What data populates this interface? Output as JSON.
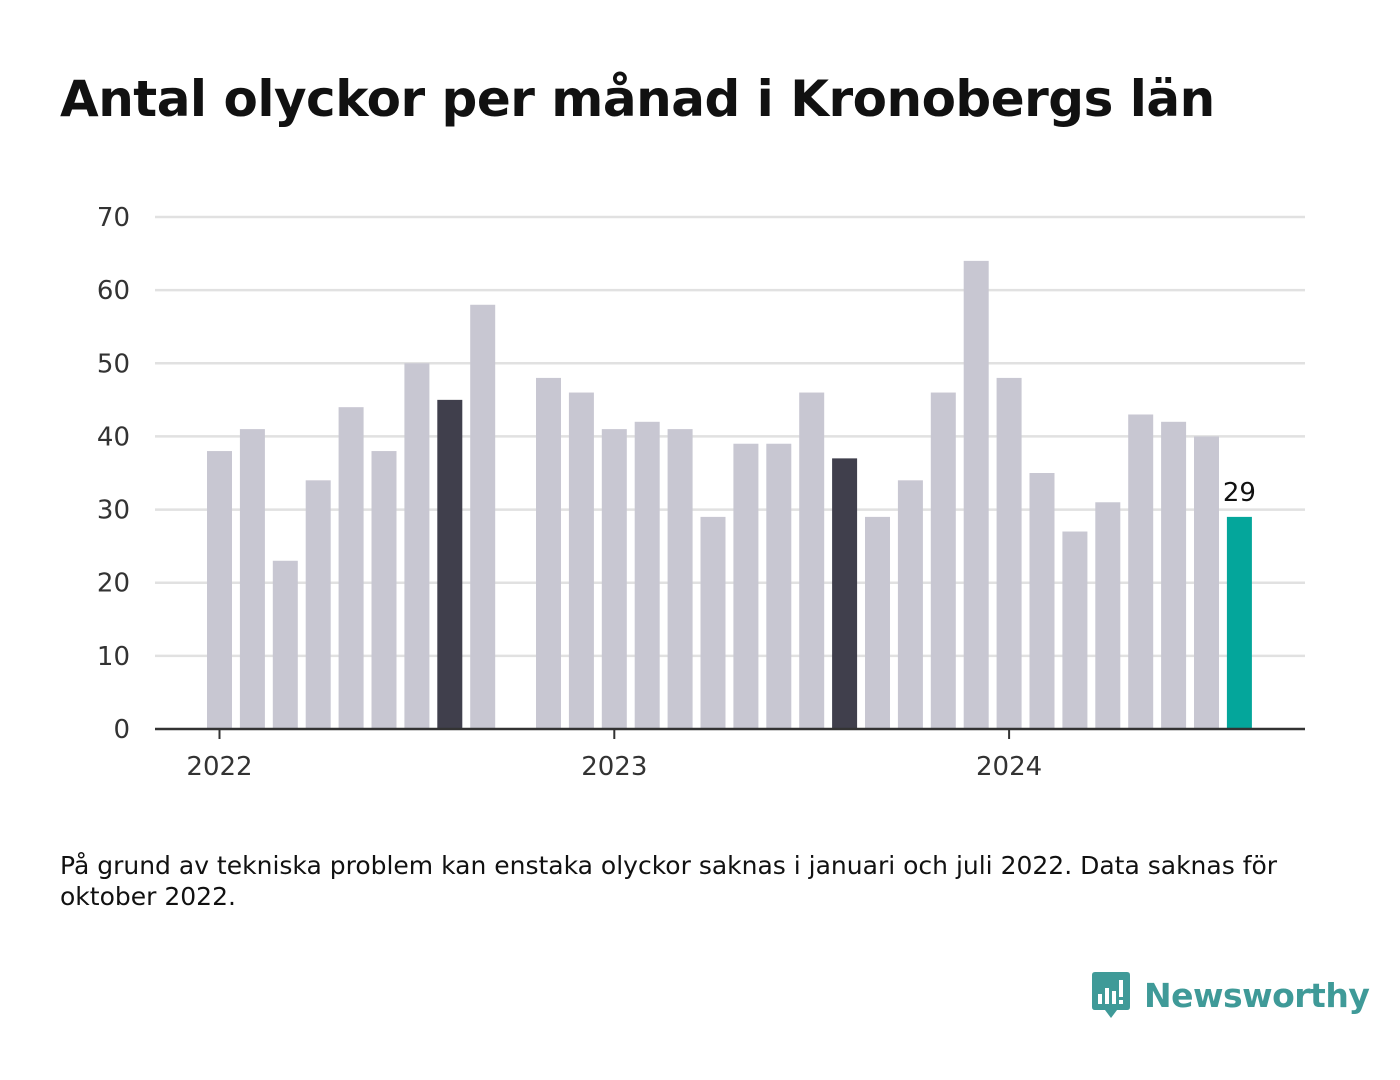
{
  "colors": {
    "default_bar": "#c8c7d2",
    "highlight_bar": "#403f4c",
    "latest_bar": "#04a69b",
    "brand": "#3f9a98",
    "grid": "#e1e1e1",
    "axis": "#333333"
  },
  "brand": {
    "name": "Newsworthy",
    "icon": "bar-chart-logo-icon"
  },
  "footnote": "På grund av tekniska problem kan enstaka olyckor saknas i januari och juli 2022. Data saknas för oktober 2022.",
  "chart_data": {
    "type": "bar",
    "title": "Antal olyckor per månad i Kronobergs län",
    "xlabel": "",
    "ylabel": "",
    "ylim": [
      0,
      70
    ],
    "yticks": [
      0,
      10,
      20,
      30,
      40,
      50,
      60,
      70
    ],
    "grid": true,
    "x_tick_labels": [
      {
        "label": "2022",
        "month": "2022-01"
      },
      {
        "label": "2023",
        "month": "2023-01"
      },
      {
        "label": "2024",
        "month": "2024-01"
      }
    ],
    "months": [
      "2022-01",
      "2022-02",
      "2022-03",
      "2022-04",
      "2022-05",
      "2022-06",
      "2022-07",
      "2022-08",
      "2022-09",
      "2022-10",
      "2022-11",
      "2022-12",
      "2023-01",
      "2023-02",
      "2023-03",
      "2023-04",
      "2023-05",
      "2023-06",
      "2023-07",
      "2023-08",
      "2023-09",
      "2023-10",
      "2023-11",
      "2023-12",
      "2024-01",
      "2024-02",
      "2024-03",
      "2024-04",
      "2024-05",
      "2024-06",
      "2024-07",
      "2024-08"
    ],
    "values": [
      38,
      41,
      23,
      34,
      44,
      38,
      50,
      45,
      58,
      null,
      48,
      46,
      41,
      42,
      41,
      29,
      39,
      39,
      46,
      37,
      29,
      34,
      46,
      64,
      48,
      35,
      27,
      31,
      43,
      42,
      40,
      29
    ],
    "highlighted_months": [
      "2022-08",
      "2023-08"
    ],
    "latest_month": "2024-08",
    "annotations": [
      {
        "month": "2024-08",
        "text": "29"
      }
    ]
  }
}
